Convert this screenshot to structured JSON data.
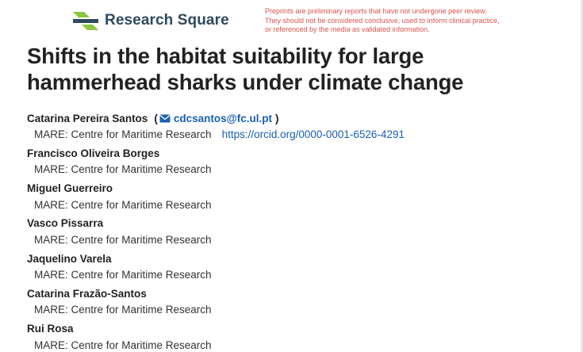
{
  "header": {
    "logo_text_main": "Research Square",
    "disclaimer": [
      "Preprints are preliminary reports that have not undergone peer review.",
      "They should not be considered conclusive, used to inform clinical practice,",
      "or referenced by the media as validated information."
    ]
  },
  "title": "Shifts in the habitat suitability for large hammerhead sharks under climate change",
  "authors": [
    {
      "name": "Catarina Pereira Santos",
      "paren_open": "(",
      "email": "cdcsantos@fc.ul.pt",
      "paren_close": ")",
      "affiliation": "MARE: Centre for Maritime Research",
      "orcid": "https://orcid.org/0000-0001-6526-4291"
    },
    {
      "name": "Francisco Oliveira Borges",
      "affiliation": "MARE: Centre for Maritime Research"
    },
    {
      "name": "Miguel Guerreiro",
      "affiliation": "MARE: Centre for Maritime Research"
    },
    {
      "name": "Vasco Pissarra",
      "affiliation": "MARE: Centre for Maritime Research"
    },
    {
      "name": "Jaquelino Varela",
      "affiliation": "MARE: Centre for Maritime Research"
    },
    {
      "name": "Catarina Frazão-Santos",
      "affiliation": "MARE: Centre for Maritime Research"
    },
    {
      "name": "Rui Rosa",
      "affiliation": "MARE: Centre for Maritime Research"
    }
  ],
  "colors": {
    "logo_green": "#8dc63f",
    "logo_navy": "#2f4a5c",
    "disclaimer_red": "#d9534f",
    "link_blue": "#1b5fb0"
  },
  "icons": {
    "email": "envelope-icon",
    "logo": "research-square-logo-mark"
  }
}
